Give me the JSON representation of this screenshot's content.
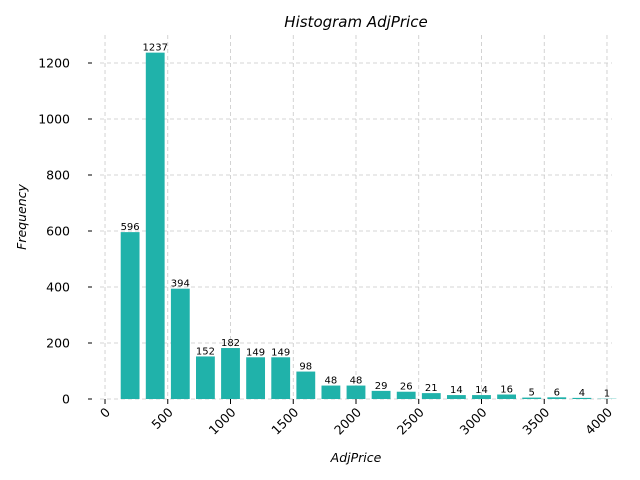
{
  "chart_data": {
    "type": "bar",
    "title": "Histogram AdjPrice",
    "xlabel": "AdjPrice",
    "ylabel": "Frequency",
    "xlim": [
      -40,
      4040
    ],
    "ylim": [
      0,
      1300
    ],
    "xticks": [
      0,
      500,
      1000,
      1500,
      2000,
      2500,
      3000,
      3500,
      4000
    ],
    "yticks": [
      0,
      200,
      400,
      600,
      800,
      1000,
      1200
    ],
    "grid": true,
    "bar_color": "#20b2aa",
    "bin_width": 200,
    "bin_centers": [
      200,
      400,
      600,
      800,
      1000,
      1200,
      1400,
      1600,
      1800,
      2000,
      2200,
      2400,
      2600,
      2800,
      3000,
      3200,
      3400,
      3600,
      3800,
      4000
    ],
    "values": [
      596,
      1237,
      394,
      152,
      182,
      149,
      149,
      98,
      48,
      48,
      29,
      26,
      21,
      14,
      14,
      16,
      5,
      6,
      4,
      1
    ]
  }
}
